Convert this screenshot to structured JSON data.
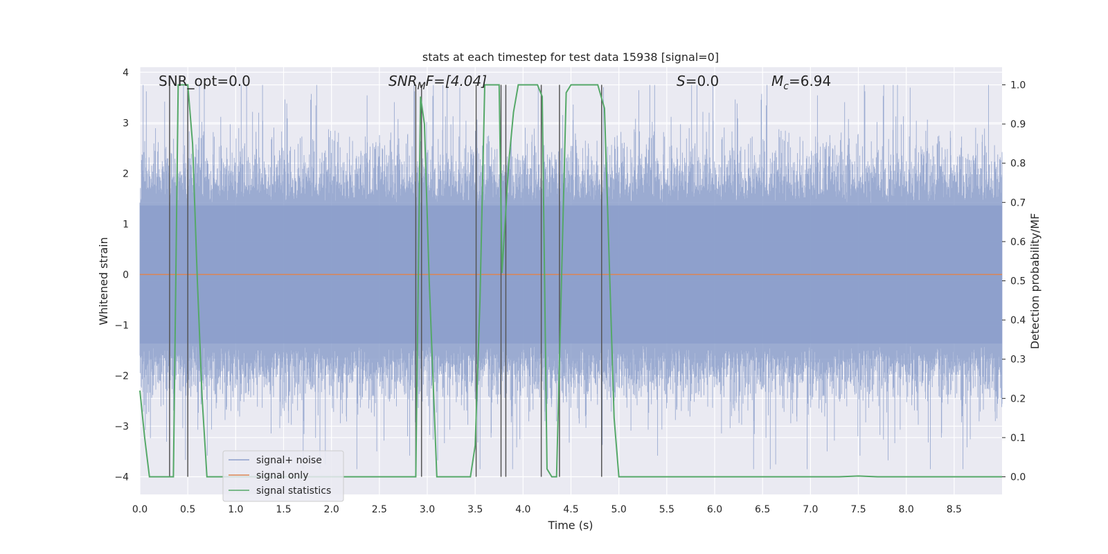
{
  "chart_data": {
    "type": "line",
    "title": "stats at each timestep for test data 15938 [signal=0]",
    "xlabel": "Time (s)",
    "ylabel": "Whitened strain",
    "y2label": "Detection probability/MF",
    "xlim": [
      0.0,
      9.0
    ],
    "ylim": [
      -4.35,
      4.1
    ],
    "y2lim": [
      -0.045,
      1.045
    ],
    "xticks": [
      "0.0",
      "0.5",
      "1.0",
      "1.5",
      "2.0",
      "2.5",
      "3.0",
      "3.5",
      "4.0",
      "4.5",
      "5.0",
      "5.5",
      "6.0",
      "6.5",
      "7.0",
      "7.5",
      "8.0",
      "8.5"
    ],
    "yticks": [
      "4",
      "3",
      "2",
      "1",
      "0",
      "−1",
      "−2",
      "−3",
      "−4"
    ],
    "y2ticks": [
      "1.0",
      "0.9",
      "0.8",
      "0.7",
      "0.6",
      "0.5",
      "0.4",
      "0.3",
      "0.2",
      "0.1",
      "0.0"
    ],
    "annotations": {
      "snr_opt": "SNR_opt=0.0",
      "snr_mf_main": "SNR",
      "snr_mf_sub": "M",
      "snr_mf_rest": "F=[4.04]",
      "s_var": "S",
      "s_rest": "=0.0",
      "mc_var": "M",
      "mc_sub": "c",
      "mc_rest": "=6.94"
    },
    "series": [
      {
        "name": "signal+ noise",
        "color": "#8da0cb",
        "description": "whitened strain noise trace, roughly Gaussian with std ~0.9, peaks up to about ±3.8",
        "envelope": 1.75
      },
      {
        "name": "signal only",
        "color": "#dd8452",
        "values_constant": 0.0
      },
      {
        "name": "signal statistics",
        "color": "#55a868",
        "x": [
          0.0,
          0.05,
          0.1,
          0.2,
          0.3,
          0.35,
          0.4,
          0.45,
          0.5,
          0.55,
          0.6,
          0.65,
          0.7,
          0.8,
          1.0,
          1.5,
          2.0,
          2.5,
          2.85,
          2.88,
          2.93,
          2.97,
          3.02,
          3.1,
          3.3,
          3.45,
          3.5,
          3.55,
          3.6,
          3.7,
          3.75,
          3.78,
          3.85,
          3.9,
          3.95,
          4.05,
          4.15,
          4.2,
          4.25,
          4.3,
          4.35,
          4.45,
          4.5,
          4.6,
          4.7,
          4.78,
          4.85,
          4.95,
          5.0,
          5.5,
          6.0,
          6.5,
          7.0,
          7.3,
          7.5,
          7.7,
          8.0,
          8.5,
          9.0
        ],
        "y": [
          0.22,
          0.1,
          0.0,
          0.0,
          0.0,
          0.0,
          1.0,
          1.0,
          1.0,
          0.85,
          0.5,
          0.2,
          0.0,
          0.0,
          0.0,
          0.0,
          0.0,
          0.0,
          0.0,
          0.0,
          0.97,
          0.9,
          0.5,
          0.0,
          0.0,
          0.0,
          0.08,
          0.45,
          1.0,
          1.0,
          1.0,
          0.52,
          0.8,
          0.93,
          1.0,
          1.0,
          1.0,
          0.97,
          0.02,
          0.0,
          0.0,
          0.98,
          1.0,
          1.0,
          1.0,
          1.0,
          0.94,
          0.15,
          0.0,
          0.0,
          0.0,
          0.0,
          0.0,
          0.0,
          0.002,
          0.0,
          0.0,
          0.0,
          0.0
        ]
      }
    ],
    "vlines": [
      0.31,
      0.5,
      2.88,
      2.94,
      3.51,
      3.77,
      3.82,
      4.19,
      4.38,
      4.82
    ],
    "legend_position": "lower-left"
  }
}
